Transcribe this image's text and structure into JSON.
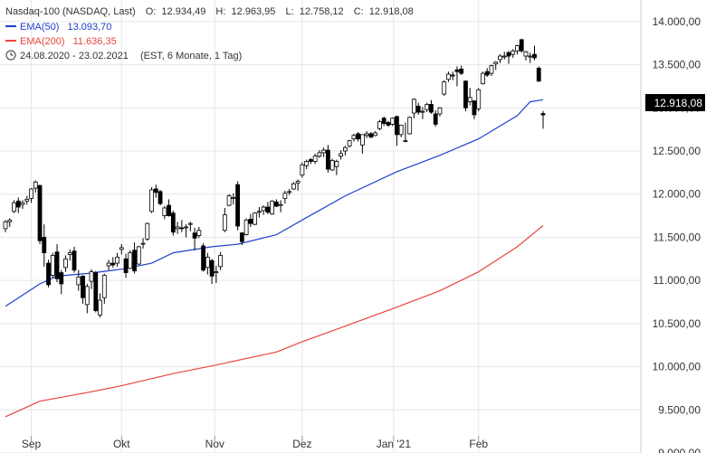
{
  "chart_data": {
    "type": "candlestick",
    "header": {
      "name": "Nasdaq-100 (NASDAQ, Last)",
      "open_label": "O:",
      "open": "12.934,49",
      "high_label": "H:",
      "high": "12.963,95",
      "low_label": "L:",
      "low": "12.758,12",
      "close_label": "C:",
      "close": "12.918,08"
    },
    "legend": [
      {
        "name": "EMA(50)",
        "value": "13.093,70",
        "color": "#1f3fcf",
        "icon": "line-swatch"
      },
      {
        "name": "EMA(200)",
        "value": "11.636,35",
        "color": "#e8453c",
        "icon": "line-swatch"
      }
    ],
    "period": {
      "icon": "clock-icon",
      "range": "24.08.2020 - 23.02.2021",
      "note": "(EST, 6 Monate, 1 Tag)"
    },
    "y_axis": {
      "side": "right",
      "range": [
        9000,
        14250
      ],
      "ticks": [
        9000,
        9500,
        10000,
        10500,
        11000,
        11500,
        12000,
        12500,
        13000,
        13500,
        14000
      ],
      "tick_labels": [
        "9.000,00",
        "9.500,00",
        "10.000,00",
        "10.500,00",
        "11.000,00",
        "11.500,00",
        "12.000,00",
        "12.500,00",
        "13.000,00",
        "13.500,00",
        "14.000,00"
      ]
    },
    "x_axis": {
      "range": [
        "2020-08-24",
        "2021-02-23"
      ],
      "ticks": [
        {
          "date": "2020-09-01",
          "label": "Sep"
        },
        {
          "date": "2020-10-01",
          "label": "Okt"
        },
        {
          "date": "2020-11-01",
          "label": "Nov"
        },
        {
          "date": "2020-12-01",
          "label": "Dez"
        },
        {
          "date": "2021-01-01",
          "label": "Jan '21"
        },
        {
          "date": "2021-02-01",
          "label": "Feb"
        }
      ]
    },
    "last_value_label": "12.918,08",
    "grid": true,
    "colors": {
      "candle": "#000000",
      "grid": "#e6e6e6",
      "ema50": "#1f3fcf",
      "ema200": "#e8453c",
      "last_label_bg": "#000000"
    },
    "candles": [
      [
        "2020-08-24",
        11600,
        11700,
        11560,
        11680
      ],
      [
        "2020-08-25",
        11680,
        11720,
        11620,
        11700
      ],
      [
        "2020-08-26",
        11800,
        11930,
        11780,
        11900
      ],
      [
        "2020-08-27",
        11920,
        11960,
        11780,
        11850
      ],
      [
        "2020-08-28",
        11880,
        11930,
        11830,
        11900
      ],
      [
        "2020-08-31",
        11920,
        11980,
        11880,
        11940
      ],
      [
        "2020-09-01",
        11950,
        12070,
        11900,
        12060
      ],
      [
        "2020-09-02",
        12070,
        12160,
        12020,
        12140
      ],
      [
        "2020-09-03",
        12100,
        12110,
        11420,
        11460
      ],
      [
        "2020-09-04",
        11500,
        11650,
        11160,
        11320
      ],
      [
        "2020-09-08",
        11200,
        11240,
        10920,
        10950
      ],
      [
        "2020-09-09",
        11060,
        11320,
        11030,
        11290
      ],
      [
        "2020-09-10",
        11330,
        11420,
        10980,
        11020
      ],
      [
        "2020-09-11",
        11090,
        11120,
        10840,
        10960
      ],
      [
        "2020-09-14",
        11150,
        11290,
        11100,
        11250
      ],
      [
        "2020-09-15",
        11300,
        11360,
        11230,
        11320
      ],
      [
        "2020-09-16",
        11340,
        11390,
        11090,
        11120
      ],
      [
        "2020-09-17",
        10950,
        11120,
        10880,
        11040
      ],
      [
        "2020-09-18",
        11050,
        11060,
        10730,
        10800
      ],
      [
        "2020-09-21",
        10720,
        10960,
        10620,
        10930
      ],
      [
        "2020-09-22",
        10990,
        11130,
        10900,
        11100
      ],
      [
        "2020-09-23",
        11090,
        11110,
        10630,
        10650
      ],
      [
        "2020-09-24",
        10600,
        10850,
        10570,
        10770
      ],
      [
        "2020-09-25",
        10800,
        11080,
        10730,
        11060
      ],
      [
        "2020-09-28",
        11170,
        11240,
        11120,
        11200
      ],
      [
        "2020-09-29",
        11200,
        11270,
        11150,
        11180
      ],
      [
        "2020-09-30",
        11200,
        11320,
        11160,
        11270
      ],
      [
        "2020-10-01",
        11360,
        11420,
        11300,
        11380
      ],
      [
        "2020-10-02",
        11250,
        11310,
        11030,
        11090
      ],
      [
        "2020-10-05",
        11140,
        11350,
        11130,
        11320
      ],
      [
        "2020-10-06",
        11350,
        11440,
        11080,
        11110
      ],
      [
        "2020-10-07",
        11190,
        11400,
        11180,
        11390
      ],
      [
        "2020-10-08",
        11420,
        11490,
        11370,
        11430
      ],
      [
        "2020-10-09",
        11480,
        11670,
        11460,
        11660
      ],
      [
        "2020-10-12",
        11800,
        12080,
        11780,
        12050
      ],
      [
        "2020-10-13",
        12060,
        12110,
        11960,
        12020
      ],
      [
        "2020-10-14",
        12030,
        12050,
        11870,
        11890
      ],
      [
        "2020-10-15",
        11750,
        11860,
        11710,
        11840
      ],
      [
        "2020-10-16",
        11870,
        11940,
        11740,
        11750
      ],
      [
        "2020-10-19",
        11780,
        11810,
        11520,
        11560
      ],
      [
        "2020-10-20",
        11600,
        11680,
        11540,
        11620
      ],
      [
        "2020-10-21",
        11610,
        11700,
        11560,
        11600
      ],
      [
        "2020-10-22",
        11620,
        11650,
        11500,
        11620
      ],
      [
        "2020-10-23",
        11650,
        11680,
        11570,
        11660
      ],
      [
        "2020-10-26",
        11550,
        11610,
        11350,
        11490
      ],
      [
        "2020-10-27",
        11520,
        11620,
        11490,
        11580
      ],
      [
        "2020-10-28",
        11400,
        11430,
        11100,
        11120
      ],
      [
        "2020-10-29",
        11150,
        11320,
        11070,
        11270
      ],
      [
        "2020-10-30",
        11230,
        11250,
        10960,
        11050
      ],
      [
        "2020-11-02",
        11090,
        11170,
        10970,
        11100
      ],
      [
        "2020-11-03",
        11160,
        11330,
        11120,
        11290
      ],
      [
        "2020-11-04",
        11580,
        11840,
        11560,
        11760
      ],
      [
        "2020-11-05",
        11870,
        12000,
        11860,
        11980
      ],
      [
        "2020-11-06",
        11950,
        12010,
        11880,
        11960
      ],
      [
        "2020-11-09",
        12110,
        12150,
        11580,
        11630
      ],
      [
        "2020-11-10",
        11550,
        11560,
        11410,
        11450
      ],
      [
        "2020-11-11",
        11530,
        11720,
        11520,
        11700
      ],
      [
        "2020-11-12",
        11710,
        11770,
        11620,
        11660
      ],
      [
        "2020-11-13",
        11650,
        11790,
        11640,
        11780
      ],
      [
        "2020-11-16",
        11800,
        11850,
        11730,
        11800
      ],
      [
        "2020-11-17",
        11810,
        11870,
        11760,
        11850
      ],
      [
        "2020-11-18",
        11850,
        11910,
        11770,
        11790
      ],
      [
        "2020-11-19",
        11770,
        11930,
        11760,
        11920
      ],
      [
        "2020-11-20",
        11910,
        11940,
        11850,
        11860
      ],
      [
        "2020-11-23",
        11880,
        11930,
        11790,
        11880
      ],
      [
        "2020-11-24",
        11950,
        12040,
        11890,
        12010
      ],
      [
        "2020-11-25",
        12030,
        12060,
        11990,
        12030
      ],
      [
        "2020-11-27",
        12060,
        12140,
        12050,
        12120
      ],
      [
        "2020-11-30",
        12130,
        12170,
        12040,
        12150
      ],
      [
        "2020-12-01",
        12220,
        12370,
        12190,
        12340
      ],
      [
        "2020-12-02",
        12330,
        12400,
        12290,
        12380
      ],
      [
        "2020-12-03",
        12400,
        12420,
        12350,
        12380
      ],
      [
        "2020-12-04",
        12380,
        12470,
        12350,
        12440
      ],
      [
        "2020-12-07",
        12440,
        12510,
        12420,
        12480
      ],
      [
        "2020-12-08",
        12480,
        12540,
        12430,
        12510
      ],
      [
        "2020-12-09",
        12510,
        12570,
        12250,
        12290
      ],
      [
        "2020-12-10",
        12280,
        12410,
        12270,
        12390
      ],
      [
        "2020-12-11",
        12320,
        12400,
        12220,
        12380
      ],
      [
        "2020-12-14",
        12440,
        12510,
        12400,
        12470
      ],
      [
        "2020-12-15",
        12500,
        12560,
        12450,
        12540
      ],
      [
        "2020-12-16",
        12560,
        12630,
        12540,
        12620
      ],
      [
        "2020-12-17",
        12640,
        12700,
        12610,
        12680
      ],
      [
        "2020-12-18",
        12700,
        12720,
        12610,
        12640
      ],
      [
        "2020-12-21",
        12570,
        12690,
        12470,
        12690
      ],
      [
        "2020-12-22",
        12680,
        12730,
        12650,
        12700
      ],
      [
        "2020-12-23",
        12700,
        12720,
        12650,
        12660
      ],
      [
        "2020-12-24",
        12680,
        12730,
        12670,
        12710
      ],
      [
        "2020-12-28",
        12760,
        12860,
        12740,
        12840
      ],
      [
        "2020-12-29",
        12880,
        12900,
        12790,
        12820
      ],
      [
        "2020-12-30",
        12830,
        12850,
        12780,
        12800
      ],
      [
        "2020-12-31",
        12810,
        12890,
        12790,
        12880
      ],
      [
        "2021-01-04",
        12900,
        12910,
        12560,
        12690
      ],
      [
        "2021-01-05",
        12690,
        12800,
        12660,
        12800
      ],
      [
        "2021-01-06",
        12620,
        12830,
        12600,
        12620
      ],
      [
        "2021-01-07",
        12700,
        12900,
        12690,
        12890
      ],
      [
        "2021-01-08",
        12940,
        13110,
        12880,
        13100
      ],
      [
        "2021-01-11",
        13020,
        13060,
        12920,
        12950
      ],
      [
        "2021-01-12",
        12960,
        13010,
        12870,
        12960
      ],
      [
        "2021-01-13",
        12980,
        13060,
        12950,
        13040
      ],
      [
        "2021-01-14",
        13040,
        13090,
        12930,
        12950
      ],
      [
        "2021-01-15",
        12930,
        12970,
        12780,
        12810
      ],
      [
        "2021-01-19",
        12930,
        13010,
        12900,
        13000
      ],
      [
        "2021-01-20",
        13160,
        13320,
        13140,
        13300
      ],
      [
        "2021-01-21",
        13330,
        13420,
        13300,
        13390
      ],
      [
        "2021-01-22",
        13380,
        13420,
        13320,
        13370
      ],
      [
        "2021-01-25",
        13440,
        13480,
        13250,
        13420
      ],
      [
        "2021-01-26",
        13450,
        13490,
        13380,
        13400
      ],
      [
        "2021-01-27",
        13310,
        13320,
        12960,
        13000
      ],
      [
        "2021-01-28",
        13070,
        13230,
        13030,
        13120
      ],
      [
        "2021-01-29",
        13080,
        13090,
        12870,
        12920
      ],
      [
        "2021-02-01",
        12990,
        13230,
        12960,
        13210
      ],
      [
        "2021-02-02",
        13280,
        13420,
        13270,
        13400
      ],
      [
        "2021-02-03",
        13420,
        13460,
        13360,
        13380
      ],
      [
        "2021-02-04",
        13400,
        13500,
        13370,
        13490
      ],
      [
        "2021-02-05",
        13510,
        13540,
        13440,
        13530
      ],
      [
        "2021-02-08",
        13560,
        13620,
        13520,
        13600
      ],
      [
        "2021-02-09",
        13600,
        13650,
        13560,
        13600
      ],
      [
        "2021-02-10",
        13640,
        13660,
        13510,
        13600
      ],
      [
        "2021-02-11",
        13620,
        13680,
        13580,
        13660
      ],
      [
        "2021-02-12",
        13660,
        13730,
        13620,
        13720
      ],
      [
        "2021-02-16",
        13790,
        13800,
        13640,
        13660
      ],
      [
        "2021-02-17",
        13600,
        13660,
        13550,
        13650
      ],
      [
        "2021-02-18",
        13600,
        13640,
        13520,
        13600
      ],
      [
        "2021-02-19",
        13620,
        13720,
        13550,
        13580
      ],
      [
        "2021-02-22",
        13460,
        13480,
        13300,
        13310
      ],
      [
        "2021-02-23",
        12934,
        12964,
        12758,
        12918
      ]
    ],
    "ema50": [
      [
        "2020-08-24",
        10700
      ],
      [
        "2020-09-03",
        10960
      ],
      [
        "2020-09-10",
        11050
      ],
      [
        "2020-09-21",
        11080
      ],
      [
        "2020-10-01",
        11130
      ],
      [
        "2020-10-12",
        11200
      ],
      [
        "2020-10-19",
        11320
      ],
      [
        "2020-10-30",
        11390
      ],
      [
        "2020-11-09",
        11420
      ],
      [
        "2020-11-20",
        11530
      ],
      [
        "2020-12-01",
        11700
      ],
      [
        "2020-12-15",
        11980
      ],
      [
        "2021-01-04",
        12260
      ],
      [
        "2021-01-19",
        12450
      ],
      [
        "2021-02-01",
        12640
      ],
      [
        "2021-02-12",
        12910
      ],
      [
        "2021-02-18",
        13070
      ],
      [
        "2021-02-23",
        13094
      ]
    ],
    "ema200": [
      [
        "2020-08-24",
        9420
      ],
      [
        "2020-09-03",
        9600
      ],
      [
        "2020-09-21",
        9700
      ],
      [
        "2020-10-01",
        9780
      ],
      [
        "2020-10-19",
        9920
      ],
      [
        "2020-11-02",
        10020
      ],
      [
        "2020-11-20",
        10170
      ],
      [
        "2020-12-01",
        10290
      ],
      [
        "2020-12-15",
        10470
      ],
      [
        "2021-01-04",
        10690
      ],
      [
        "2021-01-19",
        10880
      ],
      [
        "2021-02-01",
        11100
      ],
      [
        "2021-02-12",
        11390
      ],
      [
        "2021-02-23",
        11636
      ]
    ]
  }
}
